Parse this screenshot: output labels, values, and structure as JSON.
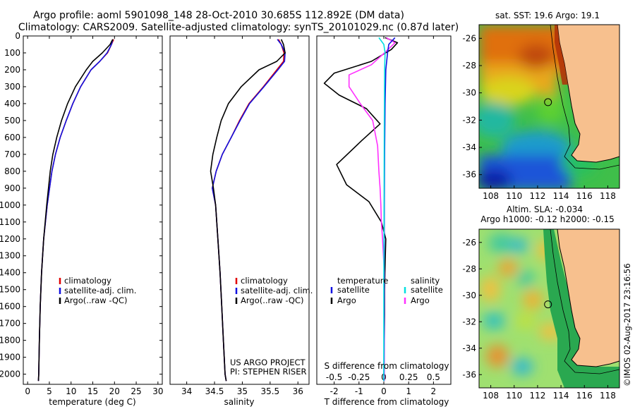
{
  "header": {
    "line1": "Argo profile: aoml 5901098_148 28-Oct-2010 30.685S 112.892E (DM data)",
    "line2": "Climatology: CARS2009. Satellite-adjusted climatology: synTS_20101029.nc (0.87d later)"
  },
  "colors": {
    "climatology": "#e00000",
    "satellite": "#1010e0",
    "argo": "#000000",
    "argo_salinity_diff": "#ff30ff",
    "satellite_salinity_diff": "#00e0e0"
  },
  "chart_data": [
    {
      "type": "line",
      "id": "temperature",
      "xlabel": "temperature (deg C)",
      "ylabel": "",
      "xlim": [
        -1,
        31
      ],
      "ylim": [
        2060,
        0
      ],
      "xticks": [
        0,
        5,
        10,
        15,
        20,
        25,
        30
      ],
      "yticks": [
        0,
        100,
        200,
        300,
        400,
        500,
        600,
        700,
        800,
        900,
        1000,
        1100,
        1200,
        1300,
        1400,
        1500,
        1600,
        1700,
        1800,
        1900,
        2000
      ],
      "legend": {
        "position": "bottom-center",
        "entries": [
          "climatology",
          "satellite-adj. clim.",
          "Argo(..raw -QC)"
        ]
      },
      "series": [
        {
          "name": "climatology",
          "color_key": "climatology",
          "x": [
            19.8,
            19.3,
            18.4,
            16.6,
            14.6,
            12.2,
            10.4,
            8.9,
            7.5,
            6.4,
            5.6,
            4.5,
            3.7,
            3.2,
            2.9,
            2.7,
            2.55,
            2.5
          ],
          "y": [
            20,
            50,
            100,
            150,
            200,
            300,
            400,
            500,
            600,
            700,
            800,
            1000,
            1200,
            1400,
            1600,
            1800,
            2000,
            2040
          ]
        },
        {
          "name": "satellite-adj. clim.",
          "color_key": "satellite",
          "x": [
            19.6,
            19.3,
            18.3,
            16.6,
            14.6,
            12.2,
            10.4,
            8.9,
            7.5,
            6.4,
            5.6,
            4.5,
            3.7,
            3.2,
            2.9,
            2.7,
            2.55,
            2.5
          ],
          "y": [
            20,
            50,
            100,
            150,
            200,
            300,
            400,
            500,
            600,
            700,
            800,
            1000,
            1200,
            1400,
            1600,
            1800,
            2000,
            2040
          ]
        },
        {
          "name": "Argo(..raw -QC)",
          "color_key": "argo",
          "x": [
            19.6,
            19.0,
            17.2,
            15.0,
            13.5,
            11.0,
            9.2,
            7.8,
            6.7,
            5.8,
            5.2,
            4.8,
            4.4,
            3.7,
            3.2,
            2.9,
            2.7,
            2.55,
            2.5
          ],
          "y": [
            20,
            50,
            100,
            150,
            200,
            300,
            400,
            500,
            600,
            700,
            800,
            900,
            1000,
            1200,
            1400,
            1600,
            1800,
            2000,
            2040
          ]
        }
      ]
    },
    {
      "type": "line",
      "id": "salinity",
      "xlabel": "salinity",
      "ylabel": "",
      "xlim": [
        33.7,
        36.2
      ],
      "ylim": [
        2060,
        0
      ],
      "xticks": [
        34,
        34.5,
        35,
        35.5,
        36
      ],
      "legend": {
        "position": "bottom-center",
        "entries": [
          "climatology",
          "satellite-adj. clim.",
          "Argo(..raw -QC)"
        ]
      },
      "annotations": [
        "US ARGO PROJECT",
        "PI: STEPHEN RISER"
      ],
      "series": [
        {
          "name": "climatology",
          "color_key": "climatology",
          "x": [
            35.65,
            35.7,
            35.75,
            35.74,
            35.62,
            35.38,
            35.12,
            34.95,
            34.8,
            34.64,
            34.53,
            34.46,
            34.52,
            34.56,
            34.6,
            34.63,
            34.66,
            34.69,
            34.71
          ],
          "y": [
            20,
            50,
            100,
            150,
            200,
            300,
            400,
            500,
            600,
            700,
            800,
            900,
            1000,
            1200,
            1400,
            1600,
            1800,
            2000,
            2040
          ]
        },
        {
          "name": "satellite-adj. clim.",
          "color_key": "satellite",
          "x": [
            35.63,
            35.7,
            35.77,
            35.76,
            35.64,
            35.39,
            35.13,
            34.96,
            34.8,
            34.64,
            34.53,
            34.46,
            34.52,
            34.56,
            34.6,
            34.63,
            34.66,
            34.69,
            34.71
          ],
          "y": [
            20,
            50,
            100,
            150,
            200,
            300,
            400,
            500,
            600,
            700,
            800,
            900,
            1000,
            1200,
            1400,
            1600,
            1800,
            2000,
            2040
          ]
        },
        {
          "name": "Argo(..raw -QC)",
          "color_key": "argo",
          "x": [
            35.7,
            35.74,
            35.77,
            35.62,
            35.3,
            34.98,
            34.75,
            34.62,
            34.54,
            34.47,
            34.43,
            34.48,
            34.52,
            34.56,
            34.6,
            34.63,
            34.66,
            34.69,
            34.71
          ],
          "y": [
            20,
            50,
            100,
            150,
            200,
            300,
            400,
            500,
            600,
            700,
            800,
            900,
            1000,
            1200,
            1400,
            1600,
            1800,
            2000,
            2040
          ]
        }
      ]
    },
    {
      "type": "line",
      "id": "differences",
      "xlabel": "T difference from climatology",
      "xlabel_top": "S difference from climatology",
      "xlim": [
        -2.7,
        2.7
      ],
      "ylim": [
        2060,
        0
      ],
      "xticks_T": [
        -2,
        -1,
        0,
        1,
        2
      ],
      "xticks_S": [
        "-0.5",
        "-0.25",
        "0",
        "0.25",
        "0.5"
      ],
      "legend": {
        "position": "bottom-center",
        "temperature_title": "temperature",
        "salinity_title": "salinity",
        "entries": [
          "satellite",
          "Argo",
          "satellite",
          "Argo"
        ]
      },
      "series": [
        {
          "name": "T Argo",
          "color_key": "argo",
          "x": [
            0.05,
            0.55,
            0.3,
            -0.5,
            -2.0,
            -2.4,
            -1.8,
            -0.7,
            -0.15,
            -0.9,
            -1.9,
            -1.5,
            -0.6,
            -0.1,
            0.08,
            0.05,
            0.03,
            0.03,
            0.02,
            0.02,
            0.02,
            0.02
          ],
          "y": [
            10,
            40,
            80,
            150,
            220,
            280,
            350,
            430,
            520,
            620,
            760,
            880,
            980,
            1100,
            1200,
            1350,
            1500,
            1650,
            1800,
            1950,
            2000,
            2040
          ]
        },
        {
          "name": "S Argo",
          "color_key": "argo_salinity_diff",
          "x": [
            0.1,
            0.45,
            0.1,
            -0.5,
            -1.4,
            -1.4,
            -0.95,
            -0.45,
            -0.25,
            -0.2,
            -0.15,
            -0.12,
            -0.1,
            -0.05,
            0.02,
            0.02,
            0.02,
            0.02,
            0.02
          ],
          "y": [
            10,
            40,
            90,
            170,
            230,
            300,
            400,
            500,
            650,
            800,
            900,
            1000,
            1100,
            1200,
            1400,
            1600,
            1800,
            2000,
            2040
          ]
        },
        {
          "name": "T satellite",
          "color_key": "satellite",
          "x": [
            0.45,
            0.2,
            0.15,
            0.08,
            0.05,
            0.03,
            0.02,
            0.01,
            0.01,
            0.0
          ],
          "y": [
            10,
            50,
            100,
            200,
            400,
            700,
            1000,
            1400,
            1800,
            2040
          ]
        },
        {
          "name": "S satellite",
          "color_key": "satellite_salinity_diff",
          "x": [
            -0.2,
            0.0,
            0.05,
            0.03,
            0.02,
            0.01,
            0.0,
            0.0
          ],
          "y": [
            10,
            50,
            100,
            200,
            500,
            900,
            1500,
            2040
          ]
        }
      ]
    }
  ],
  "maps": {
    "sst": {
      "title": "sat. SST: 19.6  Argo: 19.1",
      "xticks": [
        108,
        110,
        112,
        114,
        116,
        118
      ],
      "yticks": [
        -26,
        -28,
        -30,
        -32,
        -34,
        -36
      ],
      "xlim": [
        107,
        119
      ],
      "ylim": [
        -37,
        -25
      ],
      "argo_position": {
        "lon": 112.892,
        "lat": -30.685
      }
    },
    "sla": {
      "title_line1": "Altim. SLA: -0.034",
      "title_line2": "Argo h1000: -0.12 h2000: -0.15",
      "xticks": [
        108,
        110,
        112,
        114,
        116,
        118
      ],
      "yticks": [
        -26,
        -28,
        -30,
        -32,
        -34,
        -36
      ],
      "xlim": [
        107,
        119
      ],
      "ylim": [
        -37,
        -25
      ],
      "argo_position": {
        "lon": 112.892,
        "lat": -30.685
      }
    },
    "credit": "©IMOS 02-Aug-2017 23:16:56"
  }
}
